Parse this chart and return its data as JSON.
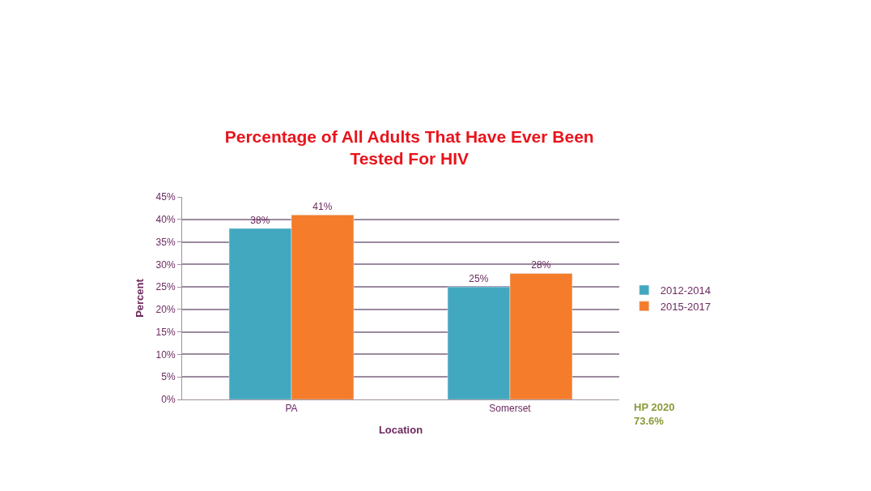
{
  "chart_data": {
    "type": "bar",
    "title": "Percentage of All Adults That Have Ever Been\nTested For HIV",
    "xlabel": "Location",
    "ylabel": "Percent",
    "categories": [
      "PA",
      "Somerset"
    ],
    "series": [
      {
        "name": "2012-2014",
        "color": "#42a8bf",
        "values": [
          38,
          25
        ],
        "value_labels": [
          "38%",
          "25%"
        ]
      },
      {
        "name": "2015-2017",
        "color": "#f47c2a",
        "values": [
          41,
          28
        ],
        "value_labels": [
          "41%",
          "28%"
        ]
      }
    ],
    "ylim": [
      0,
      45
    ],
    "yticks": [
      {
        "value": 0,
        "label": "0%"
      },
      {
        "value": 5,
        "label": "5%"
      },
      {
        "value": 10,
        "label": "10%"
      },
      {
        "value": 15,
        "label": "15%"
      },
      {
        "value": 20,
        "label": "20%"
      },
      {
        "value": 25,
        "label": "25%"
      },
      {
        "value": 30,
        "label": "30%"
      },
      {
        "value": 35,
        "label": "35%"
      },
      {
        "value": 40,
        "label": "40%"
      },
      {
        "value": 45,
        "label": "45%"
      }
    ],
    "grid": "y",
    "legend": "right",
    "annotations": [
      "HP 2020\n73.6%"
    ]
  }
}
